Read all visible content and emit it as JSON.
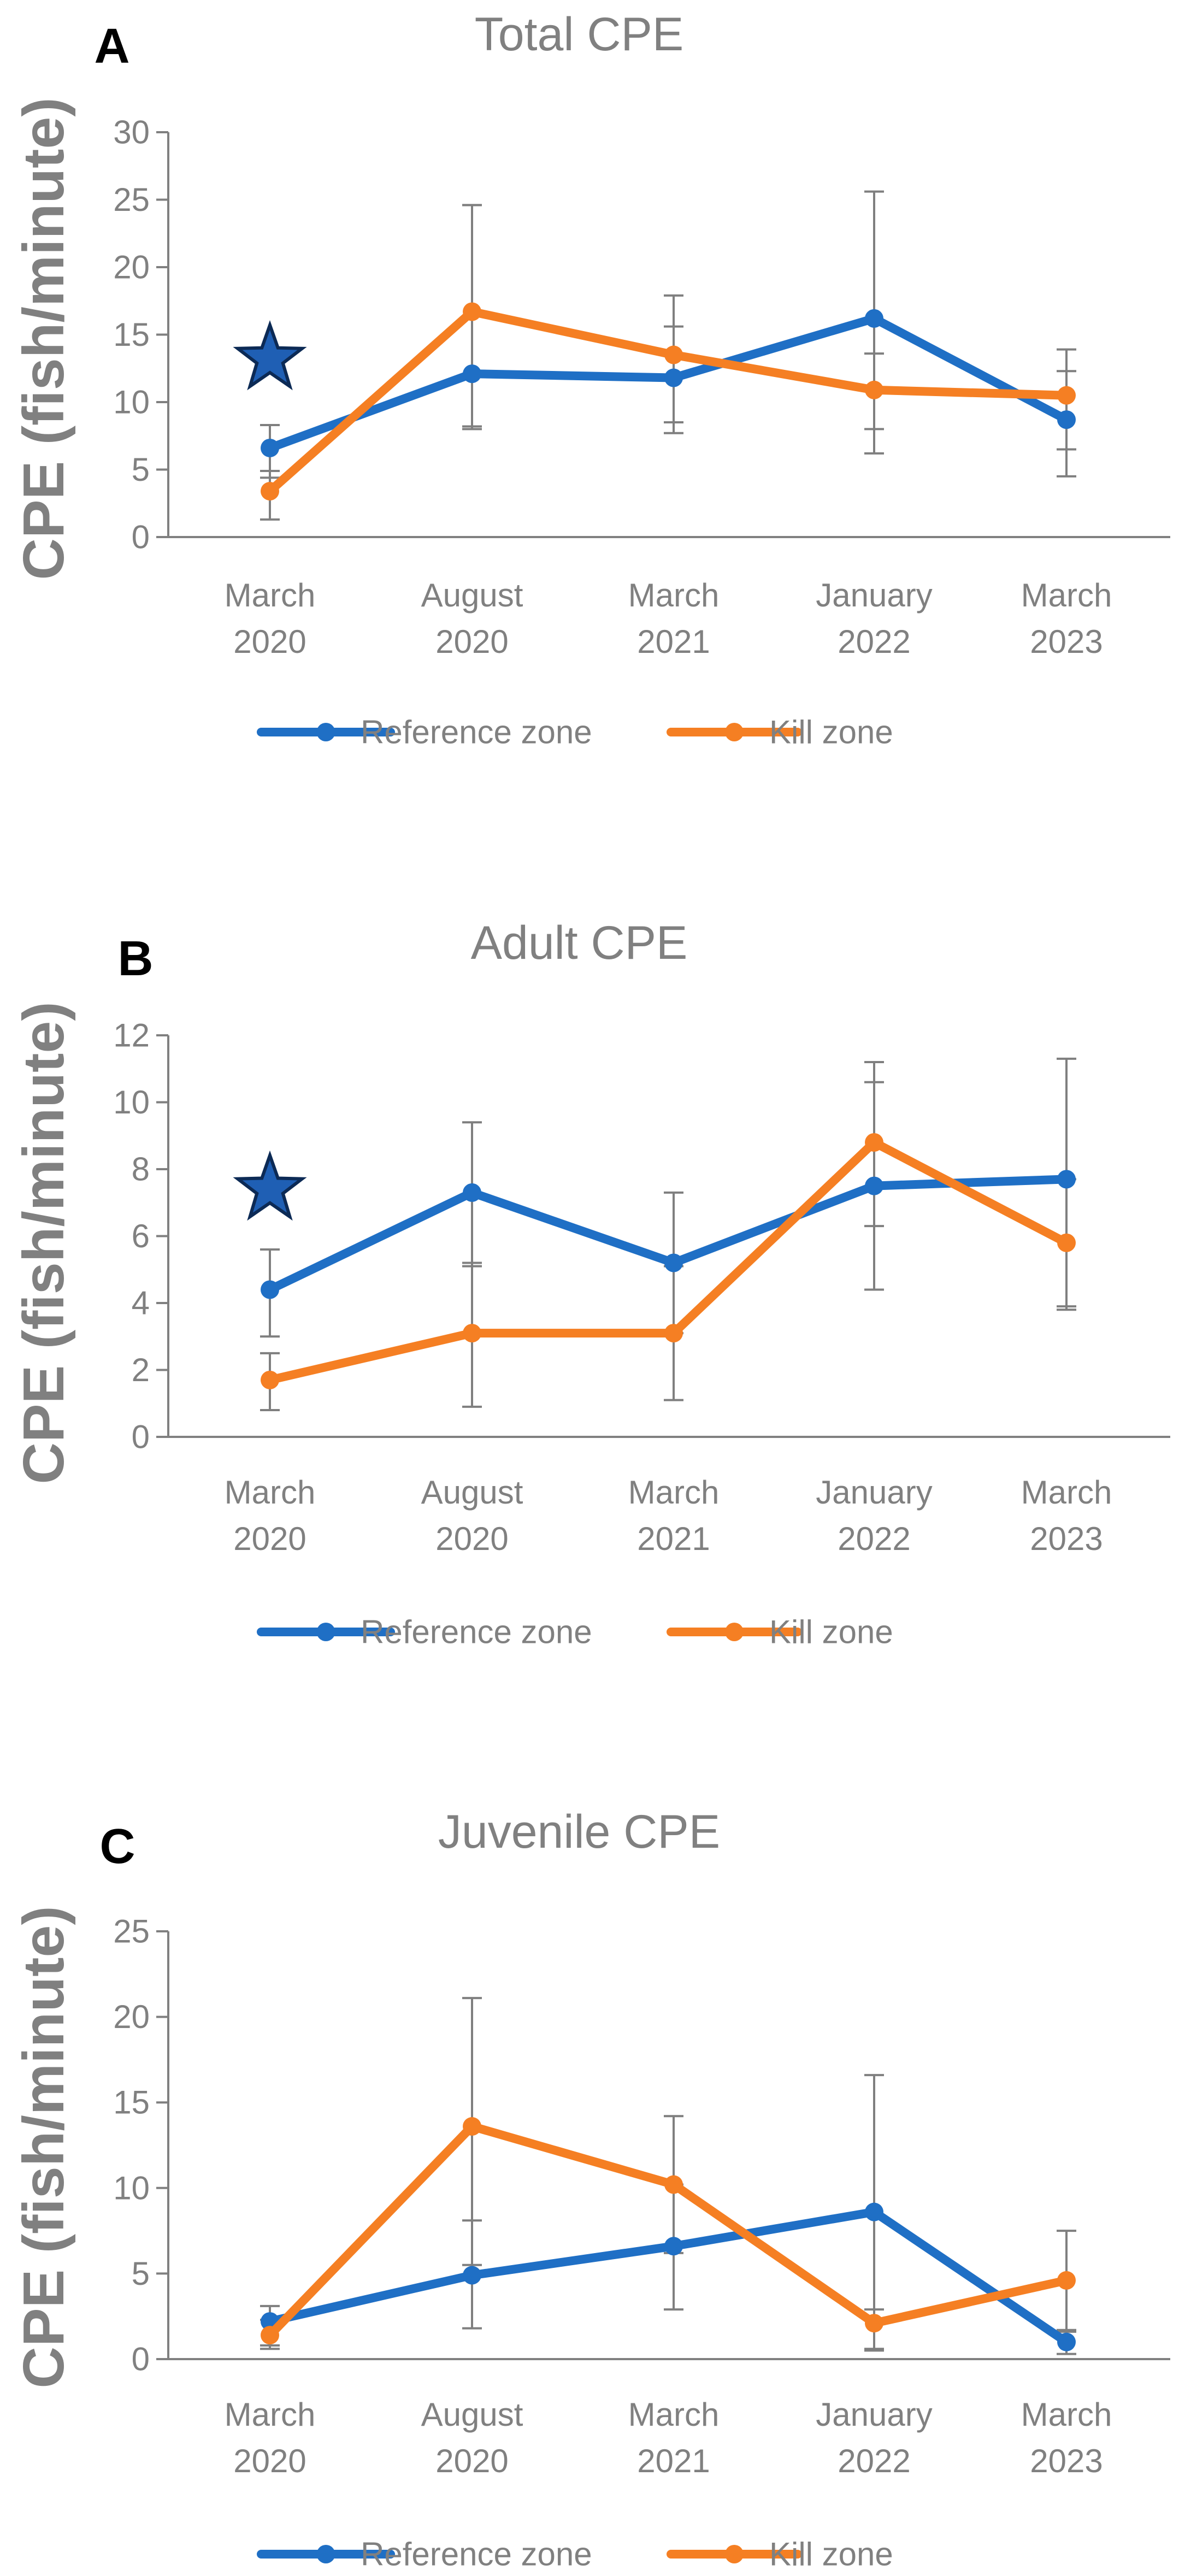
{
  "chart_data": [
    {
      "type": "line",
      "panel_label": "A",
      "title": "Total CPE",
      "ylabel": "CPE (fish/minute)",
      "xlabel": "",
      "categories": [
        [
          "March",
          "2020"
        ],
        [
          "August",
          "2020"
        ],
        [
          "March",
          "2021"
        ],
        [
          "January",
          "2022"
        ],
        [
          "March",
          "2023"
        ]
      ],
      "ylim": [
        0,
        30
      ],
      "yticks": [
        0,
        5,
        10,
        15,
        20,
        25,
        30
      ],
      "series": [
        {
          "name": "Reference zone",
          "color": "#1f6fc5",
          "values": [
            6.6,
            12.1,
            11.8,
            16.2,
            8.7
          ],
          "err_low": [
            4.4,
            8.2,
            8.5,
            8.0,
            6.5
          ],
          "err_high": [
            8.3,
            24.6,
            15.6,
            25.6,
            12.3
          ]
        },
        {
          "name": "Kill zone",
          "color": "#f57f23",
          "values": [
            3.4,
            16.7,
            13.5,
            10.9,
            10.5
          ],
          "err_low": [
            1.3,
            8.0,
            7.7,
            6.2,
            4.5
          ],
          "err_high": [
            4.9,
            24.6,
            17.9,
            13.6,
            13.9
          ]
        }
      ],
      "annotations": [
        {
          "type": "star",
          "category_index": 0,
          "y": 13.2,
          "color": "#1f5fb4"
        }
      ],
      "legend_position": "bottom-center",
      "grid": false
    },
    {
      "type": "line",
      "panel_label": "B",
      "title": "Adult CPE",
      "ylabel": "CPE (fish/minute)",
      "xlabel": "",
      "categories": [
        [
          "March",
          "2020"
        ],
        [
          "August",
          "2020"
        ],
        [
          "March",
          "2021"
        ],
        [
          "January",
          "2022"
        ],
        [
          "March",
          "2023"
        ]
      ],
      "ylim": [
        0,
        12
      ],
      "yticks": [
        0,
        2,
        4,
        6,
        8,
        10,
        12
      ],
      "series": [
        {
          "name": "Reference zone",
          "color": "#1f6fc5",
          "values": [
            4.4,
            7.3,
            5.2,
            7.5,
            7.7
          ],
          "err_low": [
            3.0,
            5.1,
            3.1,
            4.4,
            3.9
          ],
          "err_high": [
            5.6,
            9.4,
            7.3,
            10.6,
            11.3
          ]
        },
        {
          "name": "Kill zone",
          "color": "#f57f23",
          "values": [
            1.7,
            3.1,
            3.1,
            8.8,
            5.8
          ],
          "err_low": [
            0.8,
            0.9,
            1.1,
            6.3,
            3.8
          ],
          "err_high": [
            2.5,
            5.2,
            5.1,
            11.2,
            7.7
          ]
        }
      ],
      "annotations": [
        {
          "type": "star",
          "category_index": 0,
          "y": 7.4,
          "color": "#1f5fb4"
        }
      ],
      "legend_position": "bottom-center",
      "grid": false
    },
    {
      "type": "line",
      "panel_label": "C",
      "title": "Juvenile CPE",
      "ylabel": "CPE (fish/minute)",
      "xlabel": "",
      "categories": [
        [
          "March",
          "2020"
        ],
        [
          "August",
          "2020"
        ],
        [
          "March",
          "2021"
        ],
        [
          "January",
          "2022"
        ],
        [
          "March",
          "2023"
        ]
      ],
      "ylim": [
        0,
        25
      ],
      "yticks": [
        0,
        5,
        10,
        15,
        20,
        25
      ],
      "series": [
        {
          "name": "Reference zone",
          "color": "#1f6fc5",
          "values": [
            2.2,
            4.9,
            6.6,
            8.6,
            1.0
          ],
          "err_low": [
            0.8,
            1.8,
            2.9,
            0.6,
            0.3
          ],
          "err_high": [
            3.1,
            8.1,
            10.2,
            16.6,
            1.6
          ]
        },
        {
          "name": "Kill zone",
          "color": "#f57f23",
          "values": [
            1.4,
            13.6,
            10.2,
            2.1,
            4.6
          ],
          "err_low": [
            0.6,
            5.5,
            6.2,
            0.5,
            1.7
          ],
          "err_high": [
            2.3,
            21.1,
            14.2,
            2.9,
            7.5
          ]
        }
      ],
      "annotations": [],
      "legend_position": "bottom-center",
      "grid": false
    }
  ]
}
